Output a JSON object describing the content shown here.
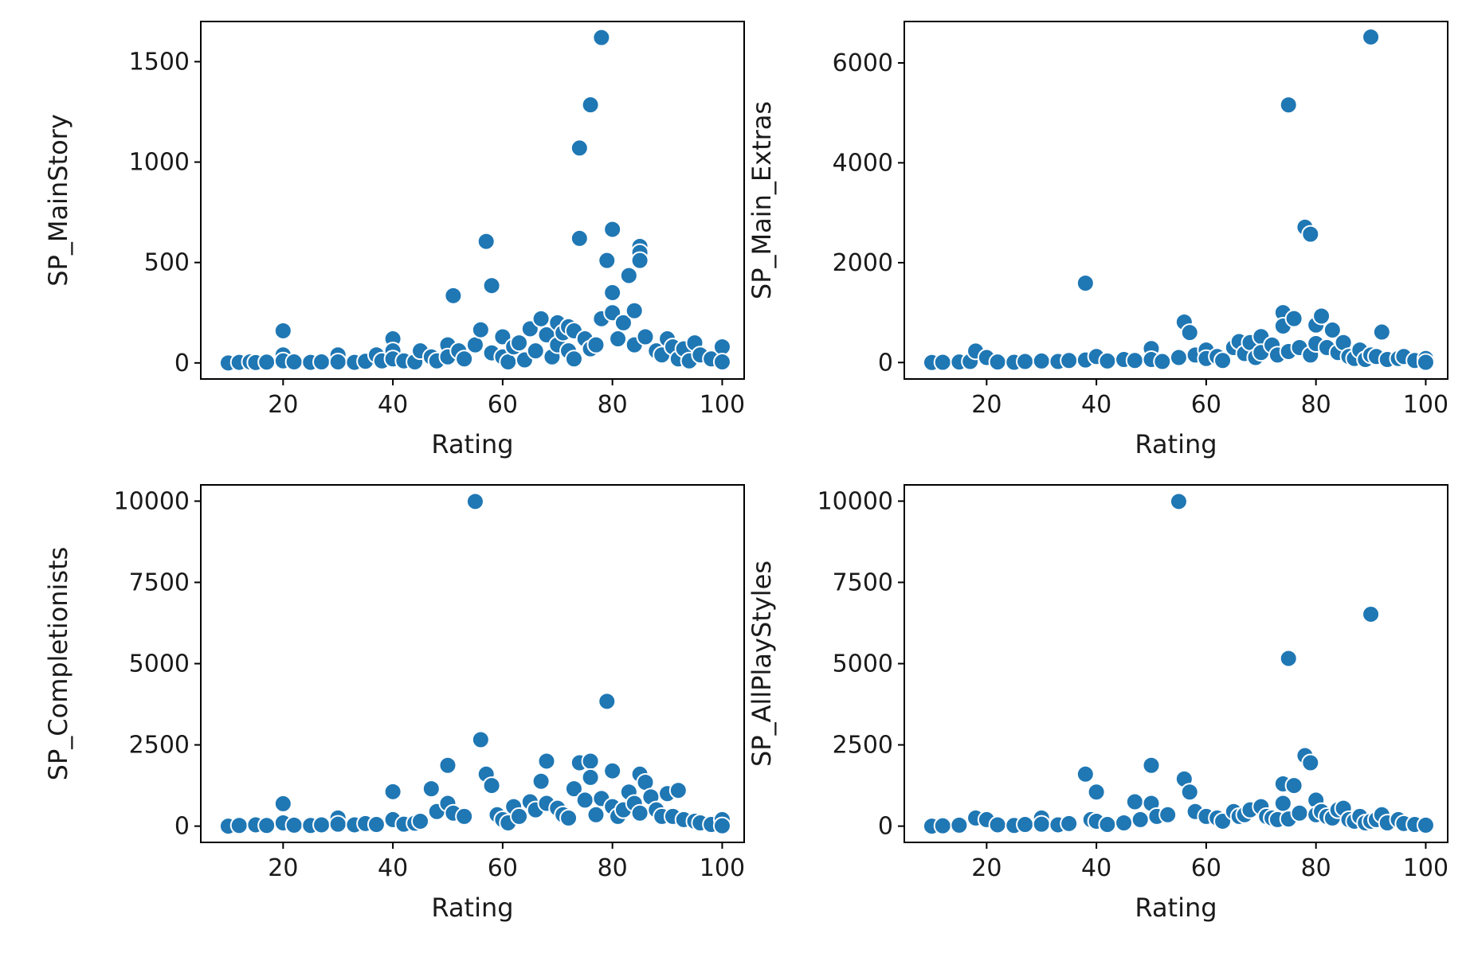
{
  "colors": {
    "point": "#1f77b4",
    "background": "#ffffff"
  },
  "chart_data": [
    {
      "type": "scatter",
      "xlabel": "Rating",
      "ylabel": "SP_MainStory",
      "xlim": [
        5,
        104
      ],
      "ylim": [
        -80,
        1700
      ],
      "xticks": [
        20,
        40,
        60,
        80,
        100
      ],
      "yticks": [
        0,
        500,
        1000,
        1500
      ],
      "points": [
        [
          10,
          0
        ],
        [
          12,
          3
        ],
        [
          14,
          5
        ],
        [
          15,
          2
        ],
        [
          17,
          4
        ],
        [
          20,
          160
        ],
        [
          20,
          40
        ],
        [
          20,
          10
        ],
        [
          22,
          5
        ],
        [
          25,
          3
        ],
        [
          27,
          5
        ],
        [
          30,
          40
        ],
        [
          30,
          5
        ],
        [
          33,
          3
        ],
        [
          35,
          8
        ],
        [
          37,
          40
        ],
        [
          38,
          10
        ],
        [
          40,
          120
        ],
        [
          40,
          60
        ],
        [
          40,
          20
        ],
        [
          42,
          10
        ],
        [
          44,
          5
        ],
        [
          45,
          60
        ],
        [
          47,
          30
        ],
        [
          48,
          10
        ],
        [
          50,
          90
        ],
        [
          50,
          30
        ],
        [
          51,
          335
        ],
        [
          52,
          60
        ],
        [
          53,
          20
        ],
        [
          55,
          90
        ],
        [
          56,
          165
        ],
        [
          57,
          605
        ],
        [
          58,
          385
        ],
        [
          58,
          50
        ],
        [
          60,
          130
        ],
        [
          60,
          30
        ],
        [
          61,
          5
        ],
        [
          62,
          80
        ],
        [
          63,
          100
        ],
        [
          64,
          15
        ],
        [
          65,
          170
        ],
        [
          66,
          60
        ],
        [
          67,
          220
        ],
        [
          68,
          140
        ],
        [
          69,
          30
        ],
        [
          70,
          200
        ],
        [
          70,
          90
        ],
        [
          71,
          150
        ],
        [
          72,
          180
        ],
        [
          72,
          60
        ],
        [
          73,
          20
        ],
        [
          73,
          160
        ],
        [
          74,
          1070
        ],
        [
          74,
          620
        ],
        [
          75,
          120
        ],
        [
          76,
          1285
        ],
        [
          76,
          70
        ],
        [
          77,
          90
        ],
        [
          78,
          1620
        ],
        [
          78,
          220
        ],
        [
          79,
          510
        ],
        [
          80,
          665
        ],
        [
          80,
          350
        ],
        [
          80,
          250
        ],
        [
          81,
          120
        ],
        [
          82,
          200
        ],
        [
          83,
          435
        ],
        [
          84,
          260
        ],
        [
          84,
          90
        ],
        [
          85,
          580
        ],
        [
          85,
          550
        ],
        [
          85,
          510
        ],
        [
          86,
          130
        ],
        [
          88,
          60
        ],
        [
          89,
          40
        ],
        [
          90,
          120
        ],
        [
          91,
          80
        ],
        [
          92,
          20
        ],
        [
          93,
          70
        ],
        [
          94,
          10
        ],
        [
          95,
          100
        ],
        [
          96,
          40
        ],
        [
          98,
          20
        ],
        [
          100,
          80
        ],
        [
          100,
          5
        ]
      ]
    },
    {
      "type": "scatter",
      "xlabel": "Rating",
      "ylabel": "SP_Main_Extras",
      "xlim": [
        5,
        104
      ],
      "ylim": [
        -330,
        6830
      ],
      "xticks": [
        20,
        40,
        60,
        80,
        100
      ],
      "yticks": [
        0,
        2000,
        4000,
        6000
      ],
      "points": [
        [
          10,
          0
        ],
        [
          12,
          5
        ],
        [
          15,
          10
        ],
        [
          17,
          20
        ],
        [
          18,
          230
        ],
        [
          20,
          100
        ],
        [
          22,
          10
        ],
        [
          25,
          5
        ],
        [
          27,
          20
        ],
        [
          30,
          30
        ],
        [
          33,
          20
        ],
        [
          35,
          40
        ],
        [
          38,
          1590
        ],
        [
          38,
          50
        ],
        [
          40,
          120
        ],
        [
          42,
          30
        ],
        [
          45,
          60
        ],
        [
          47,
          40
        ],
        [
          50,
          280
        ],
        [
          50,
          60
        ],
        [
          52,
          20
        ],
        [
          55,
          100
        ],
        [
          56,
          810
        ],
        [
          57,
          600
        ],
        [
          58,
          150
        ],
        [
          60,
          250
        ],
        [
          60,
          80
        ],
        [
          62,
          120
        ],
        [
          63,
          40
        ],
        [
          65,
          300
        ],
        [
          66,
          420
        ],
        [
          67,
          180
        ],
        [
          68,
          400
        ],
        [
          69,
          100
        ],
        [
          70,
          520
        ],
        [
          70,
          200
        ],
        [
          72,
          350
        ],
        [
          73,
          150
        ],
        [
          74,
          1000
        ],
        [
          74,
          730
        ],
        [
          75,
          5160
        ],
        [
          75,
          220
        ],
        [
          76,
          880
        ],
        [
          77,
          300
        ],
        [
          78,
          2710
        ],
        [
          79,
          2570
        ],
        [
          79,
          150
        ],
        [
          80,
          750
        ],
        [
          80,
          380
        ],
        [
          81,
          930
        ],
        [
          82,
          300
        ],
        [
          83,
          650
        ],
        [
          84,
          200
        ],
        [
          85,
          400
        ],
        [
          86,
          120
        ],
        [
          87,
          80
        ],
        [
          88,
          250
        ],
        [
          89,
          60
        ],
        [
          90,
          6520
        ],
        [
          90,
          150
        ],
        [
          91,
          120
        ],
        [
          92,
          610
        ],
        [
          93,
          60
        ],
        [
          95,
          80
        ],
        [
          96,
          120
        ],
        [
          98,
          40
        ],
        [
          100,
          80
        ],
        [
          100,
          5
        ]
      ]
    },
    {
      "type": "scatter",
      "xlabel": "Rating",
      "ylabel": "SP_Completionists",
      "xlim": [
        5,
        104
      ],
      "ylim": [
        -500,
        10500
      ],
      "xticks": [
        20,
        40,
        60,
        80,
        100
      ],
      "yticks": [
        0,
        2500,
        5000,
        7500,
        10000
      ],
      "points": [
        [
          10,
          0
        ],
        [
          12,
          20
        ],
        [
          15,
          40
        ],
        [
          17,
          20
        ],
        [
          20,
          690
        ],
        [
          20,
          100
        ],
        [
          22,
          30
        ],
        [
          25,
          20
        ],
        [
          27,
          40
        ],
        [
          30,
          250
        ],
        [
          30,
          60
        ],
        [
          33,
          40
        ],
        [
          35,
          80
        ],
        [
          37,
          50
        ],
        [
          40,
          1060
        ],
        [
          40,
          200
        ],
        [
          42,
          60
        ],
        [
          44,
          90
        ],
        [
          45,
          150
        ],
        [
          47,
          1150
        ],
        [
          48,
          450
        ],
        [
          50,
          1870
        ],
        [
          50,
          700
        ],
        [
          51,
          400
        ],
        [
          53,
          300
        ],
        [
          55,
          9990
        ],
        [
          56,
          2660
        ],
        [
          57,
          1600
        ],
        [
          58,
          1250
        ],
        [
          59,
          350
        ],
        [
          60,
          200
        ],
        [
          61,
          100
        ],
        [
          62,
          600
        ],
        [
          63,
          300
        ],
        [
          65,
          750
        ],
        [
          66,
          500
        ],
        [
          67,
          1380
        ],
        [
          68,
          2000
        ],
        [
          68,
          700
        ],
        [
          70,
          550
        ],
        [
          71,
          350
        ],
        [
          72,
          250
        ],
        [
          73,
          1150
        ],
        [
          74,
          1950
        ],
        [
          75,
          800
        ],
        [
          76,
          2000
        ],
        [
          76,
          1500
        ],
        [
          77,
          350
        ],
        [
          78,
          850
        ],
        [
          79,
          3840
        ],
        [
          80,
          1700
        ],
        [
          80,
          600
        ],
        [
          81,
          300
        ],
        [
          82,
          500
        ],
        [
          83,
          1050
        ],
        [
          84,
          700
        ],
        [
          85,
          1600
        ],
        [
          85,
          400
        ],
        [
          86,
          1350
        ],
        [
          87,
          900
        ],
        [
          88,
          500
        ],
        [
          89,
          300
        ],
        [
          90,
          1000
        ],
        [
          91,
          300
        ],
        [
          92,
          1100
        ],
        [
          93,
          200
        ],
        [
          95,
          150
        ],
        [
          96,
          100
        ],
        [
          98,
          50
        ],
        [
          100,
          200
        ],
        [
          100,
          10
        ]
      ]
    },
    {
      "type": "scatter",
      "xlabel": "Rating",
      "ylabel": "SP_AllPlayStyles",
      "xlim": [
        5,
        104
      ],
      "ylim": [
        -500,
        10500
      ],
      "xticks": [
        20,
        40,
        60,
        80,
        100
      ],
      "yticks": [
        0,
        2500,
        5000,
        7500,
        10000
      ],
      "points": [
        [
          10,
          0
        ],
        [
          12,
          10
        ],
        [
          15,
          30
        ],
        [
          18,
          250
        ],
        [
          20,
          200
        ],
        [
          22,
          40
        ],
        [
          25,
          20
        ],
        [
          27,
          50
        ],
        [
          30,
          250
        ],
        [
          30,
          60
        ],
        [
          33,
          40
        ],
        [
          35,
          80
        ],
        [
          38,
          1600
        ],
        [
          39,
          200
        ],
        [
          40,
          1050
        ],
        [
          40,
          150
        ],
        [
          42,
          50
        ],
        [
          45,
          100
        ],
        [
          47,
          750
        ],
        [
          48,
          200
        ],
        [
          50,
          1870
        ],
        [
          50,
          700
        ],
        [
          51,
          300
        ],
        [
          53,
          350
        ],
        [
          55,
          9990
        ],
        [
          56,
          1450
        ],
        [
          57,
          1050
        ],
        [
          58,
          450
        ],
        [
          60,
          300
        ],
        [
          62,
          250
        ],
        [
          63,
          150
        ],
        [
          65,
          450
        ],
        [
          66,
          300
        ],
        [
          67,
          350
        ],
        [
          68,
          500
        ],
        [
          70,
          600
        ],
        [
          71,
          300
        ],
        [
          72,
          250
        ],
        [
          73,
          200
        ],
        [
          74,
          700
        ],
        [
          74,
          1300
        ],
        [
          75,
          5160
        ],
        [
          75,
          220
        ],
        [
          76,
          1250
        ],
        [
          77,
          400
        ],
        [
          78,
          2170
        ],
        [
          79,
          1950
        ],
        [
          80,
          800
        ],
        [
          80,
          350
        ],
        [
          81,
          450
        ],
        [
          82,
          300
        ],
        [
          83,
          250
        ],
        [
          84,
          500
        ],
        [
          85,
          550
        ],
        [
          86,
          200
        ],
        [
          87,
          150
        ],
        [
          88,
          300
        ],
        [
          89,
          100
        ],
        [
          90,
          6520
        ],
        [
          90,
          150
        ],
        [
          91,
          200
        ],
        [
          92,
          350
        ],
        [
          93,
          100
        ],
        [
          95,
          200
        ],
        [
          96,
          80
        ],
        [
          98,
          50
        ],
        [
          100,
          30
        ]
      ]
    }
  ]
}
